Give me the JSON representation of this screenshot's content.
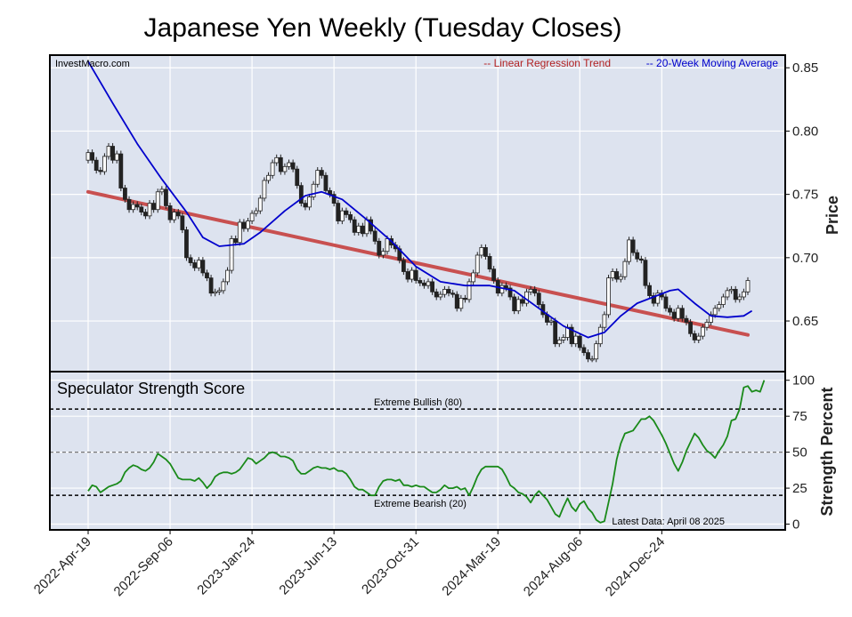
{
  "chart_data": {
    "title": "Japanese Yen Weekly (Tuesday Closes)",
    "type": "line",
    "source_label": "InvestMacro.com",
    "legend": {
      "placement": "top-right",
      "regression_label": "-- Linear Regression Trend",
      "ma_label": "-- 20-Week Moving Average",
      "regression_color": "#b22222",
      "ma_color": "#0000cc"
    },
    "price_panel": {
      "ylabel": "Price",
      "yticks": [
        "0.85",
        "0.80",
        "0.75",
        "0.70",
        "0.65"
      ],
      "ylim": [
        0.61,
        0.86
      ],
      "regression": {
        "start": 0.752,
        "end": 0.639
      },
      "moving_average": [
        {
          "x": 0,
          "y": 0.855
        },
        {
          "x": 6,
          "y": 0.822
        },
        {
          "x": 12,
          "y": 0.79
        },
        {
          "x": 18,
          "y": 0.762
        },
        {
          "x": 24,
          "y": 0.736
        },
        {
          "x": 28,
          "y": 0.716
        },
        {
          "x": 32,
          "y": 0.709
        },
        {
          "x": 38,
          "y": 0.711
        },
        {
          "x": 42,
          "y": 0.72
        },
        {
          "x": 48,
          "y": 0.737
        },
        {
          "x": 53,
          "y": 0.749
        },
        {
          "x": 57,
          "y": 0.752
        },
        {
          "x": 62,
          "y": 0.746
        },
        {
          "x": 68,
          "y": 0.73
        },
        {
          "x": 74,
          "y": 0.713
        },
        {
          "x": 80,
          "y": 0.693
        },
        {
          "x": 86,
          "y": 0.681
        },
        {
          "x": 92,
          "y": 0.678
        },
        {
          "x": 98,
          "y": 0.678
        },
        {
          "x": 104,
          "y": 0.674
        },
        {
          "x": 110,
          "y": 0.66
        },
        {
          "x": 116,
          "y": 0.646
        },
        {
          "x": 122,
          "y": 0.637
        },
        {
          "x": 126,
          "y": 0.641
        },
        {
          "x": 130,
          "y": 0.654
        },
        {
          "x": 134,
          "y": 0.664
        },
        {
          "x": 138,
          "y": 0.669
        },
        {
          "x": 142,
          "y": 0.674
        },
        {
          "x": 144,
          "y": 0.675
        },
        {
          "x": 148,
          "y": 0.664
        },
        {
          "x": 152,
          "y": 0.654
        },
        {
          "x": 156,
          "y": 0.653
        },
        {
          "x": 160,
          "y": 0.654
        },
        {
          "x": 162,
          "y": 0.658
        }
      ],
      "closes": [
        0.783,
        0.777,
        0.769,
        0.768,
        0.78,
        0.788,
        0.777,
        0.782,
        0.755,
        0.746,
        0.738,
        0.742,
        0.74,
        0.736,
        0.733,
        0.743,
        0.738,
        0.752,
        0.754,
        0.741,
        0.73,
        0.736,
        0.733,
        0.722,
        0.7,
        0.696,
        0.692,
        0.698,
        0.688,
        0.684,
        0.672,
        0.673,
        0.674,
        0.681,
        0.69,
        0.715,
        0.712,
        0.728,
        0.723,
        0.729,
        0.735,
        0.737,
        0.747,
        0.761,
        0.765,
        0.775,
        0.779,
        0.768,
        0.772,
        0.775,
        0.77,
        0.757,
        0.743,
        0.74,
        0.748,
        0.758,
        0.769,
        0.765,
        0.753,
        0.75,
        0.743,
        0.729,
        0.737,
        0.734,
        0.73,
        0.72,
        0.725,
        0.719,
        0.73,
        0.721,
        0.713,
        0.702,
        0.705,
        0.715,
        0.71,
        0.707,
        0.698,
        0.689,
        0.683,
        0.69,
        0.682,
        0.68,
        0.678,
        0.681,
        0.673,
        0.669,
        0.671,
        0.675,
        0.672,
        0.671,
        0.66,
        0.668,
        0.667,
        0.681,
        0.688,
        0.702,
        0.708,
        0.701,
        0.691,
        0.682,
        0.672,
        0.678,
        0.676,
        0.669,
        0.658,
        0.667,
        0.664,
        0.673,
        0.675,
        0.672,
        0.663,
        0.655,
        0.649,
        0.65,
        0.632,
        0.635,
        0.637,
        0.645,
        0.632,
        0.638,
        0.629,
        0.625,
        0.62,
        0.62,
        0.632,
        0.645,
        0.655,
        0.684,
        0.689,
        0.683,
        0.685,
        0.697,
        0.714,
        0.704,
        0.699,
        0.698,
        0.678,
        0.67,
        0.664,
        0.672,
        0.669,
        0.66,
        0.657,
        0.652,
        0.66,
        0.652,
        0.649,
        0.64,
        0.635,
        0.638,
        0.645,
        0.649,
        0.655,
        0.66,
        0.663,
        0.669,
        0.674,
        0.675,
        0.667,
        0.669,
        0.673,
        0.682
      ]
    },
    "strength_panel": {
      "label": "Speculator Strength Score",
      "ylabel": "Strength Percent",
      "yticks": [
        "100",
        "75",
        "50",
        "25",
        "0"
      ],
      "ylim": [
        -4,
        106
      ],
      "extreme_bullish": {
        "value": 80,
        "label": "Extreme Bullish (80)"
      },
      "extreme_bearish": {
        "value": 20,
        "label": "Extreme Bearish (20)"
      },
      "midline": 50,
      "note": "Latest Data: April 08 2025",
      "color": "#1a8a1a",
      "values": [
        23,
        27,
        26,
        22,
        24,
        26,
        27,
        28,
        30,
        36,
        39,
        41,
        40,
        38,
        37,
        39,
        43,
        49,
        47,
        45,
        42,
        37,
        32,
        31,
        31,
        31,
        30,
        32,
        29,
        25,
        28,
        33,
        35,
        36,
        36,
        35,
        36,
        38,
        42,
        46,
        45,
        42,
        44,
        46,
        49,
        50,
        49,
        47,
        47,
        46,
        44,
        38,
        35,
        35,
        37,
        39,
        40,
        39,
        39,
        38,
        39,
        37,
        37,
        35,
        31,
        26,
        24,
        24,
        22,
        20,
        20,
        26,
        30,
        31,
        31,
        30,
        31,
        27,
        27,
        26,
        27,
        26,
        26,
        24,
        22,
        22,
        24,
        27,
        25,
        25,
        26,
        24,
        25,
        20,
        26,
        33,
        38,
        40,
        40,
        40,
        40,
        38,
        33,
        27,
        25,
        22,
        21,
        19,
        15,
        20,
        23,
        20,
        17,
        12,
        7,
        5,
        12,
        18,
        12,
        9,
        14,
        16,
        11,
        8,
        3,
        1,
        2,
        15,
        28,
        45,
        56,
        63,
        64,
        65,
        69,
        73,
        73,
        75,
        72,
        67,
        62,
        56,
        49,
        42,
        37,
        43,
        51,
        57,
        63,
        60,
        55,
        51,
        49,
        46,
        51,
        55,
        61,
        72,
        73,
        80,
        95,
        96,
        92,
        93,
        92,
        100
      ]
    },
    "x_axis": {
      "tick_labels": [
        "2022-Apr-19",
        "2022-Sep-06",
        "2023-Jan-24",
        "2023-Jun-13",
        "2023-Oct-31",
        "2024-Mar-19",
        "2024-Aug-06",
        "2024-Dec-24"
      ],
      "tick_weeks": [
        0,
        20,
        40,
        60,
        80,
        100,
        120,
        140
      ]
    },
    "grid": true
  }
}
